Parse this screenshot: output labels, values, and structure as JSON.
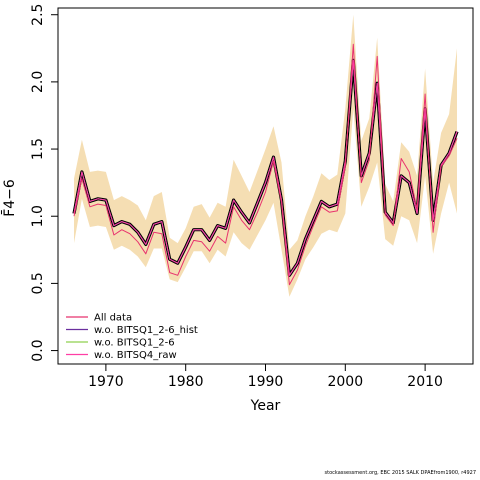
{
  "footer": "stockassessment.org, EBC 2015 SALK DPAEfrom1900, r4927",
  "chart_data": {
    "type": "line",
    "xlabel": "Year",
    "ylabel": "F̄4−6",
    "xlim": [
      1964,
      2016
    ],
    "ylim": [
      -0.1,
      2.55
    ],
    "xticks": [
      1970,
      1980,
      1990,
      2000,
      2010
    ],
    "yticks": [
      0.0,
      0.5,
      1.0,
      1.5,
      2.0,
      2.5
    ],
    "grid": false,
    "legend_position": "bottom-left",
    "x": [
      1966,
      1967,
      1968,
      1969,
      1970,
      1971,
      1972,
      1973,
      1974,
      1975,
      1976,
      1977,
      1978,
      1979,
      1980,
      1981,
      1982,
      1983,
      1984,
      1985,
      1986,
      1987,
      1988,
      1989,
      1990,
      1991,
      1992,
      1993,
      1994,
      1995,
      1996,
      1997,
      1998,
      1999,
      2000,
      2001,
      2002,
      2003,
      2004,
      2005,
      2006,
      2007,
      2008,
      2009,
      2010,
      2011,
      2012,
      2013,
      2014
    ],
    "band": {
      "color": "#f5deb3",
      "lower": [
        0.8,
        1.13,
        0.92,
        0.93,
        0.92,
        0.75,
        0.78,
        0.75,
        0.7,
        0.62,
        0.76,
        0.76,
        0.53,
        0.51,
        0.62,
        0.74,
        0.74,
        0.65,
        0.75,
        0.7,
        0.88,
        0.8,
        0.75,
        0.86,
        0.97,
        1.1,
        0.75,
        0.4,
        0.53,
        0.68,
        0.77,
        0.87,
        0.9,
        0.88,
        1.02,
        1.8,
        1.07,
        1.22,
        1.4,
        0.83,
        0.78,
        1.0,
        0.97,
        0.8,
        1.3,
        0.72,
        1.02,
        1.25,
        1.02
      ],
      "upper": [
        1.28,
        1.57,
        1.33,
        1.34,
        1.33,
        1.12,
        1.15,
        1.12,
        1.08,
        0.97,
        1.15,
        1.18,
        0.84,
        0.8,
        0.91,
        1.07,
        1.09,
        0.99,
        1.1,
        1.07,
        1.42,
        1.3,
        1.18,
        1.34,
        1.5,
        1.67,
        1.4,
        0.75,
        0.82,
        1.0,
        1.15,
        1.32,
        1.27,
        1.31,
        1.8,
        2.5,
        1.56,
        1.73,
        2.33,
        1.24,
        1.11,
        1.55,
        1.48,
        1.3,
        2.1,
        1.25,
        1.62,
        1.76,
        2.25
      ]
    },
    "series": [
      {
        "name": "All data",
        "color": "#e8336e",
        "values": [
          1.0,
          1.28,
          1.07,
          1.09,
          1.08,
          0.86,
          0.9,
          0.87,
          0.81,
          0.72,
          0.88,
          0.87,
          0.58,
          0.56,
          0.7,
          0.82,
          0.81,
          0.74,
          0.85,
          0.8,
          1.07,
          0.97,
          0.9,
          1.03,
          1.18,
          1.41,
          1.1,
          0.49,
          0.6,
          0.78,
          0.93,
          1.07,
          1.03,
          1.04,
          1.37,
          2.28,
          1.25,
          1.42,
          2.19,
          1.01,
          0.93,
          1.43,
          1.33,
          1.05,
          1.91,
          0.88,
          1.37,
          1.45,
          1.58
        ]
      },
      {
        "name": "w.o. BITSQ1_2-6_hist",
        "color": "#6a2f9e",
        "values": [
          1.02,
          1.33,
          1.11,
          1.13,
          1.12,
          0.93,
          0.96,
          0.94,
          0.88,
          0.79,
          0.94,
          0.96,
          0.68,
          0.65,
          0.77,
          0.9,
          0.9,
          0.82,
          0.93,
          0.91,
          1.12,
          1.03,
          0.95,
          1.1,
          1.25,
          1.44,
          1.12,
          0.56,
          0.65,
          0.83,
          0.97,
          1.11,
          1.07,
          1.09,
          1.41,
          2.16,
          1.3,
          1.47,
          1.99,
          1.03,
          0.95,
          1.3,
          1.25,
          1.02,
          1.8,
          0.97,
          1.38,
          1.47,
          1.63
        ]
      },
      {
        "name": "w.o. BITSQ1_2-6",
        "color": "#8fd14f",
        "values": [
          1.02,
          1.33,
          1.11,
          1.13,
          1.12,
          0.93,
          0.96,
          0.94,
          0.88,
          0.79,
          0.94,
          0.96,
          0.68,
          0.65,
          0.77,
          0.9,
          0.9,
          0.82,
          0.93,
          0.91,
          1.12,
          1.03,
          0.95,
          1.1,
          1.25,
          1.44,
          1.12,
          0.56,
          0.65,
          0.83,
          0.97,
          1.11,
          1.07,
          1.09,
          1.41,
          2.16,
          1.3,
          1.47,
          1.99,
          1.03,
          0.95,
          1.3,
          1.25,
          1.02,
          1.8,
          0.97,
          1.38,
          1.47,
          1.63
        ]
      },
      {
        "name": "w.o. BITSQ4_raw",
        "color": "#ff3ea5",
        "values": [
          1.02,
          1.33,
          1.11,
          1.13,
          1.12,
          0.93,
          0.96,
          0.94,
          0.88,
          0.79,
          0.94,
          0.96,
          0.68,
          0.65,
          0.77,
          0.9,
          0.9,
          0.82,
          0.93,
          0.91,
          1.12,
          1.03,
          0.95,
          1.1,
          1.25,
          1.44,
          1.12,
          0.56,
          0.65,
          0.83,
          0.97,
          1.11,
          1.07,
          1.09,
          1.41,
          2.16,
          1.3,
          1.47,
          1.99,
          1.03,
          0.95,
          1.3,
          1.25,
          1.02,
          1.8,
          0.97,
          1.38,
          1.47,
          1.63
        ]
      }
    ],
    "main_line": {
      "color": "#000000",
      "values": [
        1.02,
        1.33,
        1.11,
        1.13,
        1.12,
        0.93,
        0.96,
        0.94,
        0.88,
        0.79,
        0.94,
        0.96,
        0.68,
        0.65,
        0.77,
        0.9,
        0.9,
        0.82,
        0.93,
        0.91,
        1.12,
        1.03,
        0.95,
        1.1,
        1.25,
        1.44,
        1.12,
        0.56,
        0.65,
        0.83,
        0.97,
        1.11,
        1.07,
        1.09,
        1.41,
        2.16,
        1.3,
        1.47,
        1.99,
        1.03,
        0.95,
        1.3,
        1.25,
        1.02,
        1.8,
        0.97,
        1.38,
        1.47,
        1.63
      ]
    }
  }
}
